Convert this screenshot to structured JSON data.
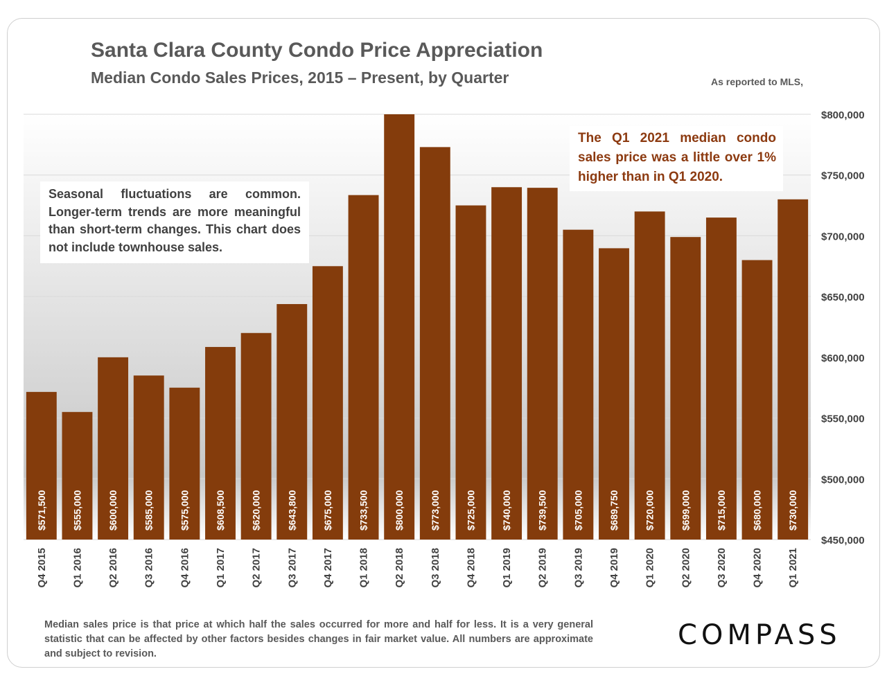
{
  "header": {
    "title": "Santa Clara County Condo Price Appreciation",
    "subtitle": "Median Condo Sales Prices, 2015 – Present, by Quarter",
    "source": "As reported to MLS,"
  },
  "notes": {
    "left": "Seasonal fluctuations are common. Longer-term trends are more meaningful than short-term changes. This chart does not include townhouse sales.",
    "right": "The Q1 2021 median condo sales price was a little over 1% higher than in Q1 2020."
  },
  "footer": {
    "text": "Median sales price is that price at which half the sales occurred for more and half for less. It is a very general statistic that can be affected by other factors besides changes in fair market value. All numbers are approximate and subject to revision."
  },
  "brand": {
    "logo": "COMPASS"
  },
  "colors": {
    "bar": "#843c0c",
    "grid": "#d9d9d9",
    "axis_text": "#404040",
    "note_accent": "#8c3a10"
  },
  "chart_data": {
    "type": "bar",
    "title": "Santa Clara County Condo Price Appreciation",
    "subtitle": "Median Condo Sales Prices, 2015 – Present, by Quarter",
    "categories": [
      "Q4 2015",
      "Q1 2016",
      "Q2 2016",
      "Q3 2016",
      "Q4 2016",
      "Q1 2017",
      "Q2 2017",
      "Q3 2017",
      "Q4 2017",
      "Q1 2018",
      "Q2 2018",
      "Q3 2018",
      "Q4 2018",
      "Q1 2019",
      "Q2 2019",
      "Q3 2019",
      "Q4 2019",
      "Q1 2020",
      "Q2 2020",
      "Q3 2020",
      "Q4 2020",
      "Q1 2021"
    ],
    "values": [
      571500,
      555000,
      600000,
      585000,
      575000,
      608500,
      620000,
      643800,
      675000,
      733500,
      800000,
      773000,
      725000,
      740000,
      739500,
      705000,
      689750,
      720000,
      699000,
      715000,
      680000,
      730000
    ],
    "data_labels": [
      "$571,500",
      "$555,000",
      "$600,000",
      "$585,000",
      "$575,000",
      "$608,500",
      "$620,000",
      "$643,800",
      "$675,000",
      "$733,500",
      "$800,000",
      "$773,000",
      "$725,000",
      "$740,000",
      "$739,500",
      "$705,000",
      "$689,750",
      "$720,000",
      "$699,000",
      "$715,000",
      "$680,000",
      "$730,000"
    ],
    "ylim": [
      450000,
      800000
    ],
    "yticks": [
      450000,
      500000,
      550000,
      600000,
      650000,
      700000,
      750000,
      800000
    ],
    "ytick_labels": [
      "$450,000",
      "$500,000",
      "$550,000",
      "$600,000",
      "$650,000",
      "$700,000",
      "$750,000",
      "$800,000"
    ],
    "y_axis_position": "right",
    "grid": true,
    "xlabel": "",
    "ylabel": ""
  }
}
